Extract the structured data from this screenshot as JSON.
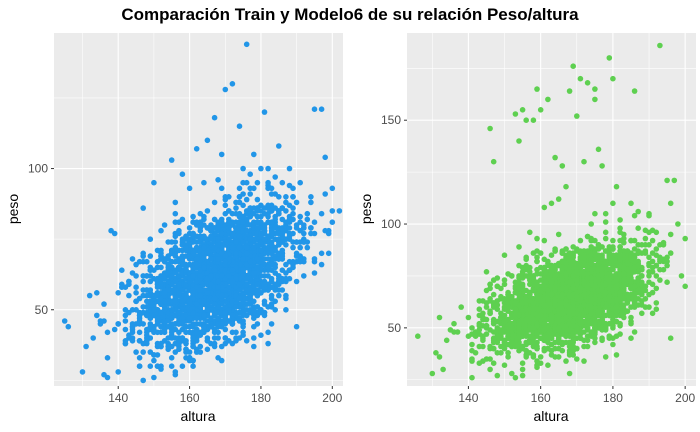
{
  "figure": {
    "title": "Comparación Train y Modelo6 de su relación Peso/altura"
  },
  "chart_data": [
    {
      "type": "scatter",
      "panel": "left",
      "xlabel": "altura",
      "ylabel": "peso",
      "xlim": [
        122,
        203
      ],
      "ylim": [
        23,
        148
      ],
      "xticks": [
        140,
        160,
        180,
        200
      ],
      "yticks": [
        50,
        100
      ],
      "grid": true,
      "color": "#2196e8",
      "background": "#ebebeb",
      "points": [
        [
          125,
          46
        ],
        [
          130,
          28
        ],
        [
          131,
          37
        ],
        [
          132,
          55
        ],
        [
          133,
          40
        ],
        [
          134,
          56
        ],
        [
          135,
          45
        ],
        [
          136,
          52
        ],
        [
          137,
          33
        ],
        [
          138,
          78
        ],
        [
          139,
          77
        ],
        [
          140,
          56
        ],
        [
          141,
          64
        ],
        [
          142,
          50
        ],
        [
          143,
          40
        ],
        [
          144,
          68
        ],
        [
          145,
          58
        ],
        [
          146,
          48
        ],
        [
          147,
          86
        ],
        [
          148,
          62
        ],
        [
          149,
          75
        ],
        [
          150,
          95
        ],
        [
          151,
          55
        ],
        [
          152,
          68
        ],
        [
          153,
          80
        ],
        [
          154,
          60
        ],
        [
          155,
          103
        ],
        [
          156,
          88
        ],
        [
          157,
          65
        ],
        [
          158,
          98
        ],
        [
          159,
          72
        ],
        [
          160,
          93
        ],
        [
          161,
          83
        ],
        [
          162,
          107
        ],
        [
          163,
          55
        ],
        [
          164,
          95
        ],
        [
          165,
          110
        ],
        [
          166,
          78
        ],
        [
          167,
          118
        ],
        [
          168,
          96
        ],
        [
          169,
          105
        ],
        [
          170,
          128
        ],
        [
          171,
          90
        ],
        [
          172,
          130
        ],
        [
          173,
          88
        ],
        [
          174,
          115
        ],
        [
          175,
          100
        ],
        [
          176,
          95
        ],
        [
          177,
          98
        ],
        [
          178,
          105
        ],
        [
          179,
          85
        ],
        [
          180,
          100
        ],
        [
          181,
          75
        ],
        [
          182,
          95
        ],
        [
          183,
          70
        ],
        [
          184,
          82
        ],
        [
          185,
          60
        ],
        [
          186,
          95
        ],
        [
          187,
          90
        ],
        [
          188,
          100
        ],
        [
          190,
          88
        ],
        [
          192,
          80
        ],
        [
          194,
          90
        ],
        [
          195,
          121
        ],
        [
          197,
          121
        ],
        [
          198,
          104
        ],
        [
          199,
          70
        ],
        [
          200,
          85
        ],
        [
          176,
          144
        ],
        [
          181,
          120
        ],
        [
          160,
          33
        ],
        [
          165,
          36
        ],
        [
          170,
          40
        ],
        [
          175,
          45
        ],
        [
          178,
          50
        ],
        [
          155,
          30
        ],
        [
          150,
          32
        ],
        [
          145,
          35
        ],
        [
          185,
          55
        ],
        [
          190,
          60
        ]
      ],
      "density_core": {
        "x_range": [
          140,
          195
        ],
        "y_range": [
          35,
          95
        ],
        "center": [
          168,
          62
        ]
      }
    },
    {
      "type": "scatter",
      "panel": "right",
      "xlabel": "altura",
      "ylabel": "peso",
      "xlim": [
        123,
        203
      ],
      "ylim": [
        22,
        192
      ],
      "xticks": [
        140,
        160,
        180,
        200
      ],
      "yticks": [
        50,
        100,
        150
      ],
      "grid": true,
      "color": "#5ed050",
      "background": "#ebebeb",
      "points": [
        [
          126,
          46
        ],
        [
          130,
          28
        ],
        [
          131,
          38
        ],
        [
          132,
          55
        ],
        [
          134,
          44
        ],
        [
          136,
          52
        ],
        [
          138,
          60
        ],
        [
          140,
          55
        ],
        [
          142,
          48
        ],
        [
          145,
          62
        ],
        [
          146,
          146
        ],
        [
          147,
          130
        ],
        [
          148,
          70
        ],
        [
          150,
          85
        ],
        [
          152,
          75
        ],
        [
          153,
          153
        ],
        [
          154,
          140
        ],
        [
          155,
          155
        ],
        [
          156,
          150
        ],
        [
          157,
          96
        ],
        [
          158,
          150
        ],
        [
          159,
          165
        ],
        [
          160,
          155
        ],
        [
          161,
          108
        ],
        [
          162,
          160
        ],
        [
          163,
          110
        ],
        [
          164,
          132
        ],
        [
          165,
          112
        ],
        [
          166,
          128
        ],
        [
          167,
          118
        ],
        [
          168,
          164
        ],
        [
          169,
          176
        ],
        [
          170,
          152
        ],
        [
          171,
          170
        ],
        [
          172,
          130
        ],
        [
          173,
          168
        ],
        [
          174,
          100
        ],
        [
          175,
          160
        ],
        [
          176,
          136
        ],
        [
          177,
          128
        ],
        [
          178,
          105
        ],
        [
          179,
          180
        ],
        [
          180,
          110
        ],
        [
          181,
          118
        ],
        [
          182,
          102
        ],
        [
          183,
          95
        ],
        [
          184,
          78
        ],
        [
          185,
          110
        ],
        [
          186,
          164
        ],
        [
          187,
          106
        ],
        [
          188,
          90
        ],
        [
          190,
          96
        ],
        [
          192,
          80
        ],
        [
          193,
          186
        ],
        [
          195,
          121
        ],
        [
          197,
          121
        ],
        [
          198,
          100
        ],
        [
          200,
          70
        ],
        [
          175,
          165
        ],
        [
          180,
          170
        ],
        [
          160,
          33
        ],
        [
          165,
          36
        ],
        [
          170,
          40
        ],
        [
          175,
          45
        ],
        [
          178,
          50
        ],
        [
          155,
          30
        ],
        [
          150,
          32
        ],
        [
          145,
          35
        ],
        [
          185,
          55
        ],
        [
          190,
          60
        ],
        [
          196,
          110
        ],
        [
          194,
          90
        ],
        [
          186,
          104
        ],
        [
          182,
          96
        ]
      ],
      "density_core": {
        "x_range": [
          142,
          196
        ],
        "y_range": [
          35,
          100
        ],
        "center": [
          168,
          64
        ]
      }
    }
  ]
}
